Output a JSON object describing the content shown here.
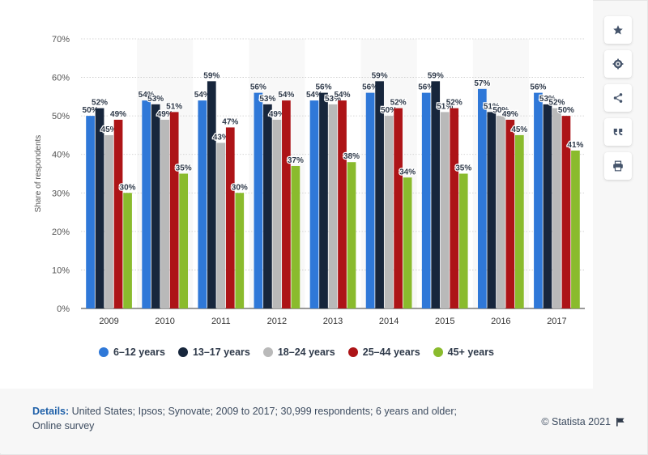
{
  "chart_data": {
    "type": "bar",
    "categories": [
      "2009",
      "2010",
      "2011",
      "2012",
      "2013",
      "2014",
      "2015",
      "2016",
      "2017"
    ],
    "series": [
      {
        "name": "6-12 years",
        "color": "#2f78d8",
        "values": [
          50,
          54,
          54,
          56,
          54,
          56,
          56,
          57,
          56
        ]
      },
      {
        "name": "13-17 years",
        "color": "#17263c",
        "values": [
          52,
          53,
          59,
          53,
          56,
          59,
          59,
          51,
          53
        ]
      },
      {
        "name": "18-24 years",
        "color": "#b9b9b9",
        "values": [
          45,
          49,
          43,
          49,
          53,
          50,
          51,
          50,
          52
        ]
      },
      {
        "name": "25-44 years",
        "color": "#ad1417",
        "values": [
          49,
          51,
          47,
          54,
          54,
          52,
          52,
          49,
          50
        ]
      },
      {
        "name": "45+ years",
        "color": "#8abb2d",
        "values": [
          30,
          35,
          30,
          37,
          38,
          34,
          35,
          45,
          41
        ]
      }
    ],
    "value_labels": [
      [
        "50%",
        "54%",
        "54%",
        "56%",
        "54%",
        "56%",
        "56%",
        "57%",
        "56%"
      ],
      [
        "52%",
        "53%",
        "59%",
        "53%",
        "56%",
        "59%",
        "59%",
        "51%",
        "53%"
      ],
      [
        "45%",
        "49%",
        "43%",
        "49%",
        "53%",
        "50%",
        "51%",
        "50%",
        "52%"
      ],
      [
        "49%",
        "51%",
        "47%",
        "54%",
        "54%",
        "52%",
        "52%",
        "49%",
        "50%"
      ],
      [
        "30%",
        "35%",
        "30%",
        "37%",
        "38%",
        "34%",
        "35%",
        "45%",
        "41%"
      ]
    ],
    "ylabel": "Share of respondents",
    "ylim": [
      0,
      70
    ],
    "yticks": [
      0,
      10,
      20,
      30,
      40,
      50,
      60,
      70
    ],
    "ytick_labels": [
      "0%",
      "10%",
      "20%",
      "30%",
      "40%",
      "50%",
      "60%",
      "70%"
    ],
    "grid": true,
    "legend_position": "bottom"
  },
  "legend": {
    "items": [
      {
        "label": "6–12 years",
        "color": "#2f78d8"
      },
      {
        "label": "13–17 years",
        "color": "#17263c"
      },
      {
        "label": "18–24 years",
        "color": "#b9b9b9"
      },
      {
        "label": "25–44 years",
        "color": "#ad1417"
      },
      {
        "label": "45+ years",
        "color": "#8abb2d"
      }
    ]
  },
  "footer": {
    "details_label": "Details:",
    "details_text": "United States; Ipsos; Synovate; 2009 to 2017; 30,999 respondents; 6 years and older; Online survey",
    "credit": "© Statista 2021"
  },
  "toolbar": {
    "icons": [
      "star-icon",
      "gear-icon",
      "share-icon",
      "quote-icon",
      "print-icon"
    ]
  }
}
